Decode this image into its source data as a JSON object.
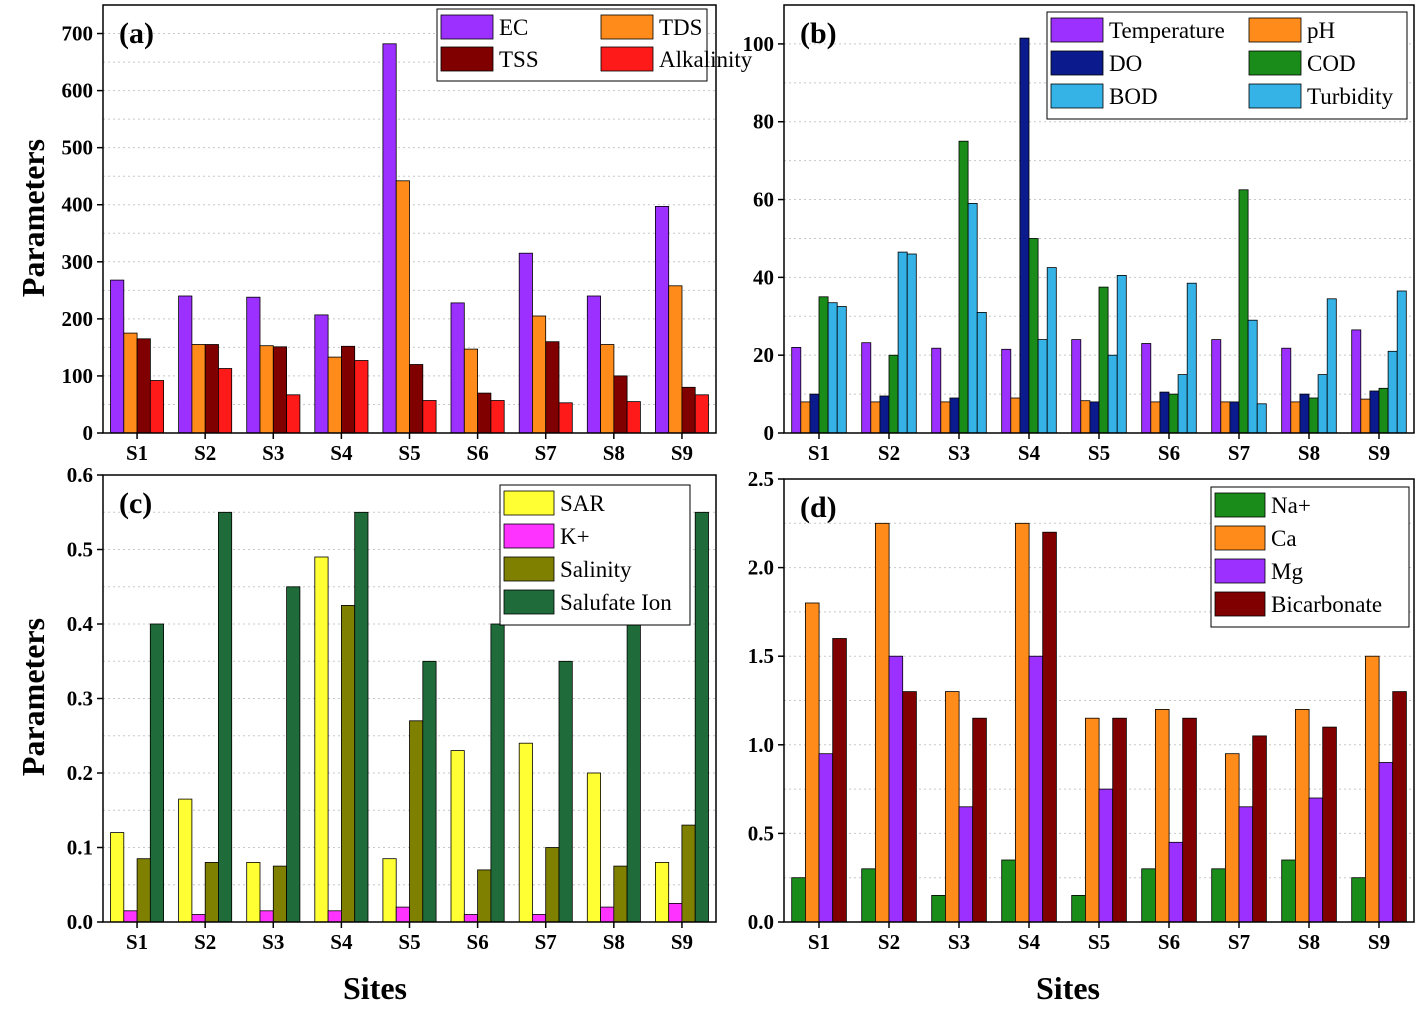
{
  "figure": {
    "y_title": "Parameters",
    "x_title": "Sites"
  },
  "chart_data": [
    {
      "panel": "(a)",
      "type": "bar",
      "categories": [
        "S1",
        "S2",
        "S3",
        "S4",
        "S5",
        "S6",
        "S7",
        "S8",
        "S9"
      ],
      "ylim": [
        0,
        750
      ],
      "yticks": [
        0,
        100,
        200,
        300,
        400,
        500,
        600,
        700
      ],
      "ylabel": "Parameters",
      "xlabel": "",
      "grid": true,
      "legend": {
        "placement": "top-right",
        "columns": 2
      },
      "series": [
        {
          "name": "EC",
          "color": "#9b30ff",
          "values": [
            268,
            240,
            238,
            207,
            682,
            228,
            315,
            240,
            397
          ]
        },
        {
          "name": "TDS",
          "color": "#ff8c1a",
          "values": [
            175,
            155,
            153,
            133,
            442,
            147,
            205,
            155,
            258
          ]
        },
        {
          "name": "TSS",
          "color": "#800000",
          "values": [
            165,
            155,
            151,
            152,
            120,
            70,
            160,
            100,
            80
          ]
        },
        {
          "name": "Alkalinity",
          "color": "#ff1a1a",
          "values": [
            92,
            113,
            67,
            127,
            57,
            57,
            53,
            55,
            67
          ]
        }
      ]
    },
    {
      "panel": "(b)",
      "type": "bar",
      "categories": [
        "S1",
        "S2",
        "S3",
        "S4",
        "S5",
        "S6",
        "S7",
        "S8",
        "S9"
      ],
      "ylim": [
        0,
        110
      ],
      "yticks": [
        0,
        20,
        40,
        60,
        80,
        100
      ],
      "ylabel": "",
      "xlabel": "",
      "grid": true,
      "legend": {
        "placement": "top-right",
        "columns": 2
      },
      "series": [
        {
          "name": "Temperature",
          "color": "#9b30ff",
          "values": [
            22,
            23.2,
            21.8,
            21.5,
            24,
            23,
            24,
            21.8,
            26.5
          ]
        },
        {
          "name": "pH",
          "color": "#ff8c1a",
          "values": [
            8,
            8,
            8,
            9,
            8.3,
            8,
            8,
            8,
            8.7
          ]
        },
        {
          "name": "DO",
          "color": "#0b1a8c",
          "values": [
            10,
            9.5,
            9,
            101.5,
            8,
            10.5,
            8,
            10,
            10.8
          ]
        },
        {
          "name": "COD",
          "color": "#1a8c1a",
          "values": [
            35,
            20,
            75,
            50,
            37.5,
            10,
            62.5,
            9,
            11.5
          ]
        },
        {
          "name": "BOD",
          "color": "#35b2e6",
          "values": [
            33.5,
            46.5,
            59,
            24,
            20,
            15,
            29,
            15,
            21
          ]
        },
        {
          "name": "Turbidity",
          "color": "#35b2e6",
          "values": [
            32.5,
            46,
            31,
            42.5,
            40.5,
            38.5,
            7.5,
            34.5,
            36.5
          ]
        }
      ]
    },
    {
      "panel": "(c)",
      "type": "bar",
      "categories": [
        "S1",
        "S2",
        "S3",
        "S4",
        "S5",
        "S6",
        "S7",
        "S8",
        "S9"
      ],
      "ylim": [
        0,
        0.6
      ],
      "yticks": [
        "0.0",
        "0.1",
        "0.2",
        "0.3",
        "0.4",
        "0.5",
        "0.6"
      ],
      "ylabel": "Parameters",
      "xlabel": "Sites",
      "grid": true,
      "legend": {
        "placement": "top-right",
        "columns": 1
      },
      "series": [
        {
          "name": "SAR",
          "color": "#ffff33",
          "values": [
            0.12,
            0.165,
            0.08,
            0.49,
            0.085,
            0.23,
            0.24,
            0.2,
            0.08
          ]
        },
        {
          "name": "K+",
          "color": "#ff33ff",
          "values": [
            0.015,
            0.01,
            0.015,
            0.015,
            0.02,
            0.01,
            0.01,
            0.02,
            0.025
          ]
        },
        {
          "name": "Salinity",
          "color": "#808000",
          "values": [
            0.085,
            0.08,
            0.075,
            0.425,
            0.27,
            0.07,
            0.1,
            0.075,
            0.13
          ]
        },
        {
          "name": "Salufate Ion",
          "color": "#1f6b3a",
          "values": [
            0.4,
            0.55,
            0.45,
            0.55,
            0.35,
            0.4,
            0.35,
            0.4,
            0.55
          ]
        }
      ]
    },
    {
      "panel": "(d)",
      "type": "bar",
      "categories": [
        "S1",
        "S2",
        "S3",
        "S4",
        "S5",
        "S6",
        "S7",
        "S8",
        "S9"
      ],
      "ylim": [
        0,
        2.5
      ],
      "yticks": [
        "0.0",
        "0.5",
        "1.0",
        "1.5",
        "2.0",
        "2.5"
      ],
      "ylabel": "",
      "xlabel": "Sites",
      "grid": true,
      "legend": {
        "placement": "top-right",
        "columns": 1
      },
      "series": [
        {
          "name": "Na+",
          "color": "#1a8c1a",
          "values": [
            0.25,
            0.3,
            0.15,
            0.35,
            0.15,
            0.3,
            0.3,
            0.35,
            0.25
          ]
        },
        {
          "name": "Ca",
          "color": "#ff8c1a",
          "values": [
            1.8,
            2.25,
            1.3,
            2.25,
            1.15,
            1.2,
            0.95,
            1.2,
            1.5
          ]
        },
        {
          "name": "Mg",
          "color": "#9b30ff",
          "values": [
            0.95,
            1.5,
            0.65,
            1.5,
            0.75,
            0.45,
            0.65,
            0.7,
            0.9
          ]
        },
        {
          "name": "Bicarbonate",
          "color": "#800000",
          "values": [
            1.6,
            1.3,
            1.15,
            2.2,
            1.15,
            1.15,
            1.05,
            1.1,
            1.3
          ]
        }
      ]
    }
  ]
}
